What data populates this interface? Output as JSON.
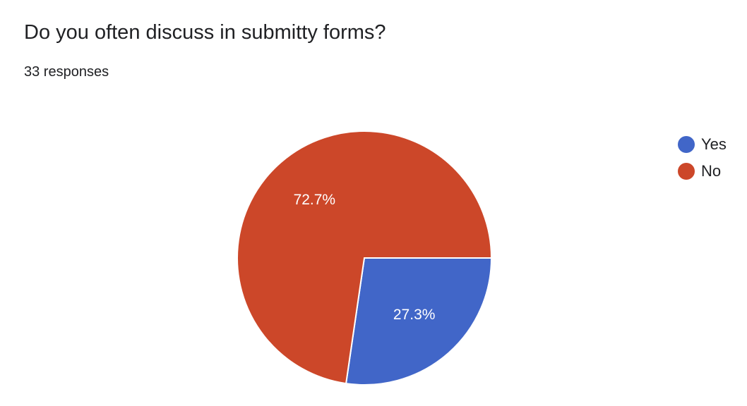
{
  "question": {
    "title": "Do you often discuss in submitty forms?",
    "response_count": "33 responses"
  },
  "chart_data": {
    "type": "pie",
    "title": "Do you often discuss in submitty forms?",
    "categories": [
      "Yes",
      "No"
    ],
    "values": [
      27.3,
      72.7
    ],
    "labels": [
      "27.3%",
      "72.7%"
    ],
    "colors": [
      "#4166C8",
      "#CC4729"
    ],
    "legend_position": "top-right"
  }
}
